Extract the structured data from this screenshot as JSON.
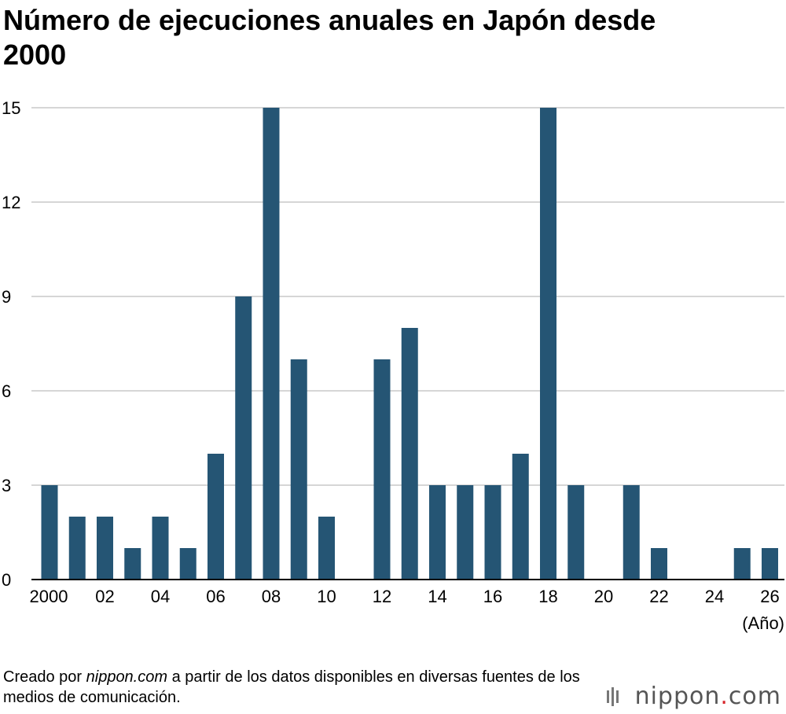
{
  "title": "Número de ejecuciones anuales en Japón desde 2000",
  "footer": {
    "prefix": "Creado por ",
    "site": "nippon.com",
    "suffix": " a partir de los datos disponibles en diversas fuentes de los medios de comunicación."
  },
  "brand": {
    "name_part1": "nippon",
    "dot": ".",
    "name_part2": "com",
    "icon": "nippon-logo-icon"
  },
  "colors": {
    "bar": "#255574",
    "grid": "#c8c8c8",
    "axis": "#000000",
    "brand_dot": "#d7262c"
  },
  "chart_data": {
    "type": "bar",
    "title": "Número de ejecuciones anuales en Japón desde 2000",
    "xlabel": "(Año)",
    "ylabel": "",
    "ylim": [
      0,
      15
    ],
    "yticks": [
      0,
      3,
      6,
      9,
      12,
      15
    ],
    "grid": true,
    "categories": [
      "2000",
      "2001",
      "2002",
      "2003",
      "2004",
      "2005",
      "2006",
      "2007",
      "2008",
      "2009",
      "2010",
      "2011",
      "2012",
      "2013",
      "2014",
      "2015",
      "2016",
      "2017",
      "2018",
      "2019",
      "2020",
      "2021",
      "2022",
      "2023",
      "2024",
      "2025",
      "2026"
    ],
    "xtick_labels": [
      "2000",
      "",
      "02",
      "",
      "04",
      "",
      "06",
      "",
      "08",
      "",
      "10",
      "",
      "12",
      "",
      "14",
      "",
      "16",
      "",
      "18",
      "",
      "20",
      "",
      "22",
      "",
      "24",
      "",
      "26"
    ],
    "values": [
      3,
      2,
      2,
      1,
      2,
      1,
      4,
      9,
      15,
      7,
      2,
      0,
      7,
      8,
      3,
      3,
      3,
      4,
      15,
      3,
      0,
      3,
      1,
      0,
      0,
      1,
      1
    ]
  }
}
